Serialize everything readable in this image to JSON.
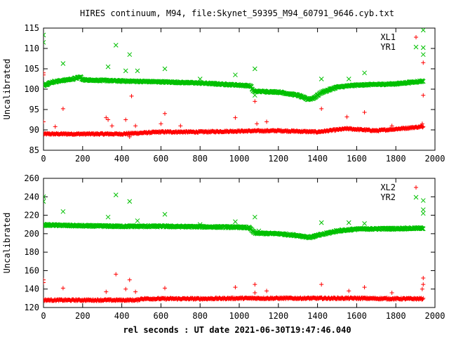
{
  "figure": {
    "title": "HIRES continuum, M94, file:Skynet_59395_M94_60791_9646.cyb.txt",
    "xlabel": "rel seconds : UT date 2021-06-30T19:47:46.040"
  },
  "colors": {
    "red": "#ff0000",
    "green": "#00c000",
    "axis": "#000000"
  },
  "chart_data": [
    {
      "type": "scatter",
      "title": "HIRES continuum, M94, file:Skynet_59395_M94_60791_9646.cyb.txt",
      "xlabel": "",
      "ylabel": "Uncalibrated",
      "xlim": [
        0,
        2000
      ],
      "ylim": [
        85,
        115
      ],
      "xticks": [
        0,
        200,
        400,
        600,
        800,
        1000,
        1200,
        1400,
        1600,
        1800,
        2000
      ],
      "yticks": [
        85,
        90,
        95,
        100,
        105,
        110,
        115
      ],
      "grid": false,
      "legend": "top-right",
      "marker": "+ / x",
      "series": [
        {
          "name": "XL1",
          "color": "#ff0000",
          "marker": "+",
          "trend": [
            [
              0,
              89.0
            ],
            [
              200,
              89.0
            ],
            [
              400,
              89.0
            ],
            [
              600,
              89.5
            ],
            [
              800,
              89.5
            ],
            [
              1000,
              89.7
            ],
            [
              1200,
              89.8
            ],
            [
              1400,
              89.5
            ],
            [
              1550,
              90.3
            ],
            [
              1700,
              89.8
            ],
            [
              1940,
              90.8
            ]
          ],
          "outliers": [
            [
              0,
              104.0
            ],
            [
              0,
              103.5
            ],
            [
              0,
              92.0
            ],
            [
              100,
              95.2
            ],
            [
              60,
              90.8
            ],
            [
              320,
              93.0
            ],
            [
              330,
              92.5
            ],
            [
              350,
              91.0
            ],
            [
              420,
              92.5
            ],
            [
              440,
              88.3
            ],
            [
              450,
              98.3
            ],
            [
              470,
              91.0
            ],
            [
              600,
              91.5
            ],
            [
              620,
              94.0
            ],
            [
              700,
              91.0
            ],
            [
              980,
              93.0
            ],
            [
              1080,
              97.0
            ],
            [
              1090,
              91.5
            ],
            [
              1140,
              92.0
            ],
            [
              1420,
              95.2
            ],
            [
              1550,
              93.2
            ],
            [
              1640,
              94.3
            ],
            [
              1780,
              91.0
            ],
            [
              1940,
              106.5
            ],
            [
              1940,
              98.5
            ],
            [
              1935,
              91.5
            ]
          ]
        },
        {
          "name": "YR1",
          "color": "#00c000",
          "marker": "x",
          "trend": [
            [
              0,
              101.0
            ],
            [
              50,
              101.8
            ],
            [
              150,
              102.5
            ],
            [
              190,
              103.0
            ],
            [
              200,
              102.3
            ],
            [
              400,
              102.0
            ],
            [
              600,
              101.8
            ],
            [
              800,
              101.5
            ],
            [
              1000,
              101.0
            ],
            [
              1060,
              100.8
            ],
            [
              1070,
              99.5
            ],
            [
              1200,
              99.3
            ],
            [
              1300,
              98.5
            ],
            [
              1350,
              97.5
            ],
            [
              1380,
              97.8
            ],
            [
              1420,
              99.2
            ],
            [
              1500,
              100.5
            ],
            [
              1600,
              101.0
            ],
            [
              1800,
              101.3
            ],
            [
              1940,
              102.0
            ]
          ],
          "outliers": [
            [
              0,
              113.3
            ],
            [
              0,
              111.5
            ],
            [
              100,
              106.3
            ],
            [
              330,
              105.5
            ],
            [
              370,
              110.8
            ],
            [
              420,
              104.5
            ],
            [
              440,
              108.5
            ],
            [
              480,
              104.5
            ],
            [
              620,
              105.0
            ],
            [
              800,
              102.5
            ],
            [
              980,
              103.5
            ],
            [
              1080,
              105.0
            ],
            [
              1080,
              98.5
            ],
            [
              1420,
              102.5
            ],
            [
              1560,
              102.5
            ],
            [
              1640,
              104.0
            ],
            [
              1940,
              114.5
            ],
            [
              1940,
              110.2
            ],
            [
              1940,
              108.5
            ]
          ]
        }
      ]
    },
    {
      "type": "scatter",
      "title": "",
      "xlabel": "rel seconds : UT date 2021-06-30T19:47:46.040",
      "ylabel": "Uncalibrated",
      "xlim": [
        0,
        2000
      ],
      "ylim": [
        120,
        260
      ],
      "xticks": [
        0,
        200,
        400,
        600,
        800,
        1000,
        1200,
        1400,
        1600,
        1800,
        2000
      ],
      "yticks": [
        120,
        140,
        160,
        180,
        200,
        220,
        240,
        260
      ],
      "grid": false,
      "legend": "top-right",
      "series": [
        {
          "name": "XL2",
          "color": "#ff0000",
          "marker": "+",
          "trend": [
            [
              0,
              128.0
            ],
            [
              200,
              128.0
            ],
            [
              480,
              128.0
            ],
            [
              500,
              129.5
            ],
            [
              800,
              129.5
            ],
            [
              1000,
              130.0
            ],
            [
              1200,
              130.0
            ],
            [
              1400,
              130.0
            ],
            [
              1600,
              130.0
            ],
            [
              1800,
              129.5
            ],
            [
              1940,
              129.5
            ]
          ],
          "outliers": [
            [
              0,
              150.0
            ],
            [
              0,
              147.0
            ],
            [
              100,
              141.0
            ],
            [
              320,
              137.0
            ],
            [
              370,
              156.0
            ],
            [
              420,
              140.0
            ],
            [
              440,
              150.0
            ],
            [
              470,
              137.0
            ],
            [
              620,
              141.0
            ],
            [
              980,
              142.0
            ],
            [
              1080,
              145.0
            ],
            [
              1080,
              136.0
            ],
            [
              1140,
              138.0
            ],
            [
              1420,
              145.0
            ],
            [
              1560,
              138.0
            ],
            [
              1640,
              142.0
            ],
            [
              1780,
              136.0
            ],
            [
              1940,
              152.0
            ],
            [
              1940,
              145.0
            ],
            [
              1935,
              140.0
            ]
          ]
        },
        {
          "name": "YR2",
          "color": "#00c000",
          "marker": "x",
          "trend": [
            [
              0,
              209.5
            ],
            [
              200,
              208.5
            ],
            [
              400,
              208.0
            ],
            [
              600,
              208.0
            ],
            [
              800,
              207.5
            ],
            [
              1000,
              207.0
            ],
            [
              1050,
              206.5
            ],
            [
              1080,
              200.5
            ],
            [
              1200,
              200.0
            ],
            [
              1300,
              198.0
            ],
            [
              1360,
              196.0
            ],
            [
              1420,
              199.0
            ],
            [
              1500,
              203.0
            ],
            [
              1600,
              205.0
            ],
            [
              1800,
              205.5
            ],
            [
              1940,
              206.0
            ]
          ],
          "outliers": [
            [
              0,
              240.0
            ],
            [
              0,
              235.0
            ],
            [
              100,
              224.0
            ],
            [
              330,
              218.0
            ],
            [
              370,
              242.0
            ],
            [
              440,
              235.0
            ],
            [
              480,
              214.0
            ],
            [
              620,
              221.0
            ],
            [
              800,
              210.0
            ],
            [
              980,
              213.0
            ],
            [
              1080,
              218.0
            ],
            [
              1100,
              203.0
            ],
            [
              1420,
              212.0
            ],
            [
              1560,
              212.0
            ],
            [
              1640,
              211.0
            ],
            [
              1940,
              236.0
            ],
            [
              1940,
              226.0
            ],
            [
              1940,
              222.0
            ]
          ]
        }
      ]
    }
  ]
}
